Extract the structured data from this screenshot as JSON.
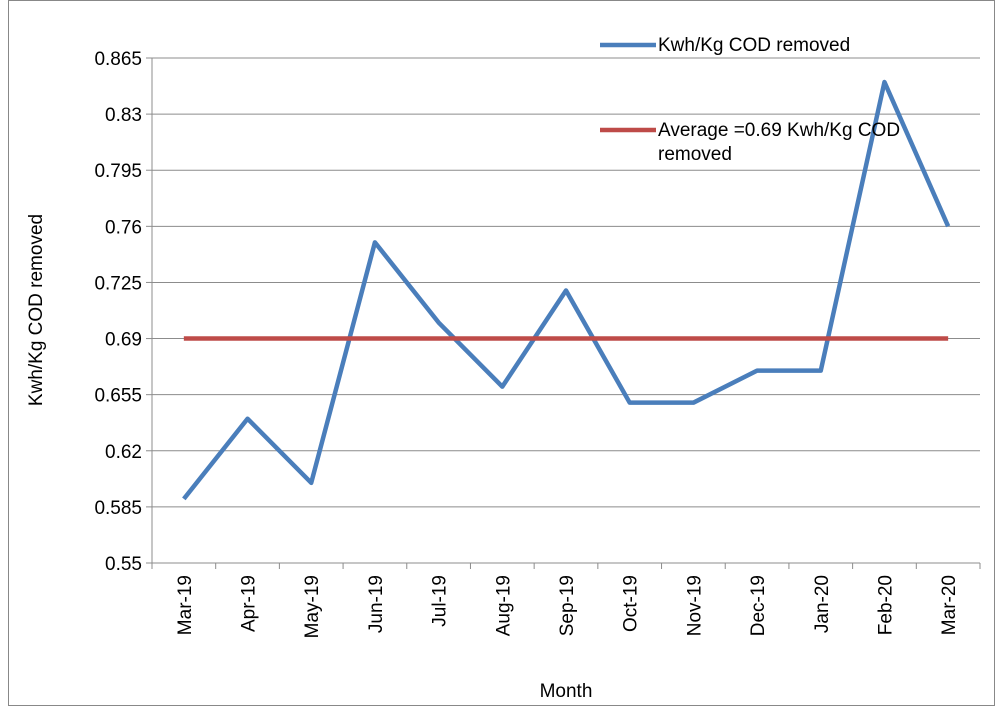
{
  "chart_data": {
    "type": "line",
    "x_label": "Month",
    "y_label": "Kwh/Kg COD removed",
    "categories": [
      "Mar-19",
      "Apr-19",
      "May-19",
      "Jun-19",
      "Jul-19",
      "Aug-19",
      "Sep-19",
      "Oct-19",
      "Nov-19",
      "Dec-19",
      "Jan-20",
      "Feb-20",
      "Mar-20"
    ],
    "series": [
      {
        "name": "Kwh/Kg COD removed",
        "color": "#4a7ebb",
        "values": [
          0.59,
          0.64,
          0.6,
          0.75,
          0.7,
          0.66,
          0.72,
          0.65,
          0.65,
          0.67,
          0.67,
          0.85,
          0.76
        ]
      },
      {
        "name": "Average =0.69 Kwh/Kg COD removed",
        "color": "#be4b48",
        "values": [
          0.69,
          0.69,
          0.69,
          0.69,
          0.69,
          0.69,
          0.69,
          0.69,
          0.69,
          0.69,
          0.69,
          0.69,
          0.69
        ]
      }
    ],
    "ylim": [
      0.55,
      0.865
    ],
    "yticks": [
      0.55,
      0.585,
      0.62,
      0.655,
      0.69,
      0.725,
      0.76,
      0.795,
      0.83,
      0.865
    ],
    "grid": true,
    "legend": "top-right"
  }
}
